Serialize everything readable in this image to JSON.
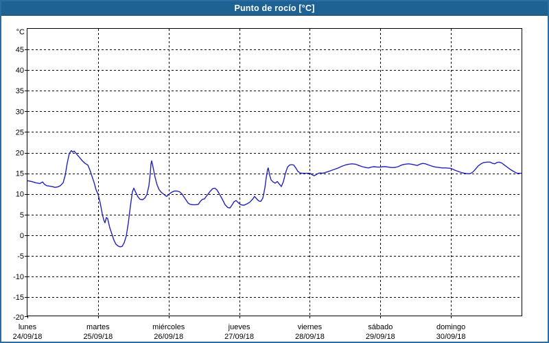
{
  "window": {
    "title": "Punto de rocío [°C]"
  },
  "colors": {
    "titlebar_bg": "#1e6293",
    "titlebar_text": "#ffffff",
    "window_border": "#2b6ca3",
    "plot_bg": "#ffffff",
    "grid": "#000000",
    "axis_text": "#000000",
    "line": "#2121bd"
  },
  "chart_data": {
    "type": "line",
    "title": "Punto de rocío [°C]",
    "ylabel": "°C",
    "xlabel": "",
    "ylim": [
      -20,
      50
    ],
    "y_ticks": [
      45,
      40,
      35,
      30,
      25,
      20,
      15,
      10,
      5,
      0,
      -5,
      -10,
      -15,
      -20
    ],
    "grid": "dashed",
    "legend_position": "none",
    "x_days": [
      {
        "name": "lunes",
        "date": "24/09/18"
      },
      {
        "name": "martes",
        "date": "25/09/18"
      },
      {
        "name": "miércoles",
        "date": "26/09/18"
      },
      {
        "name": "jueves",
        "date": "27/09/18"
      },
      {
        "name": "viernes",
        "date": "28/09/18"
      },
      {
        "name": "sábado",
        "date": "29/09/18"
      },
      {
        "name": "domingo",
        "date": "30/09/18"
      }
    ],
    "xlim_days": [
      0,
      7
    ],
    "series": [
      {
        "name": "Punto de rocío",
        "color": "#2121bd",
        "points": [
          [
            0.0,
            13.2
          ],
          [
            0.058,
            13.0
          ],
          [
            0.117,
            12.7
          ],
          [
            0.175,
            12.5
          ],
          [
            0.214,
            12.9
          ],
          [
            0.243,
            12.3
          ],
          [
            0.272,
            12.0
          ],
          [
            0.311,
            11.9
          ],
          [
            0.35,
            11.8
          ],
          [
            0.389,
            11.6
          ],
          [
            0.428,
            11.7
          ],
          [
            0.467,
            12.0
          ],
          [
            0.506,
            12.7
          ],
          [
            0.535,
            14.5
          ],
          [
            0.564,
            17.5
          ],
          [
            0.593,
            19.8
          ],
          [
            0.622,
            20.5
          ],
          [
            0.642,
            20.1
          ],
          [
            0.661,
            20.4
          ],
          [
            0.7,
            19.6
          ],
          [
            0.739,
            18.8
          ],
          [
            0.778,
            18.0
          ],
          [
            0.817,
            17.4
          ],
          [
            0.856,
            17.0
          ],
          [
            0.885,
            15.8
          ],
          [
            0.914,
            14.3
          ],
          [
            0.943,
            12.8
          ],
          [
            0.972,
            11.0
          ],
          [
            1.001,
            9.9
          ],
          [
            1.031,
            7.8
          ],
          [
            1.06,
            5.2
          ],
          [
            1.079,
            3.8
          ],
          [
            1.099,
            3.0
          ],
          [
            1.118,
            4.3
          ],
          [
            1.137,
            4.0
          ],
          [
            1.167,
            1.8
          ],
          [
            1.196,
            0.3
          ],
          [
            1.225,
            -1.2
          ],
          [
            1.254,
            -2.2
          ],
          [
            1.283,
            -2.6
          ],
          [
            1.312,
            -2.8
          ],
          [
            1.342,
            -2.7
          ],
          [
            1.371,
            -1.8
          ],
          [
            1.4,
            -0.2
          ],
          [
            1.429,
            3.0
          ],
          [
            1.458,
            7.0
          ],
          [
            1.487,
            10.5
          ],
          [
            1.507,
            11.4
          ],
          [
            1.536,
            10.3
          ],
          [
            1.565,
            9.3
          ],
          [
            1.594,
            8.7
          ],
          [
            1.633,
            8.6
          ],
          [
            1.662,
            9.0
          ],
          [
            1.692,
            9.8
          ],
          [
            1.721,
            12.0
          ],
          [
            1.74,
            15.0
          ],
          [
            1.75,
            17.3
          ],
          [
            1.76,
            18.0
          ],
          [
            1.779,
            16.5
          ],
          [
            1.808,
            14.0
          ],
          [
            1.837,
            12.2
          ],
          [
            1.867,
            11.0
          ],
          [
            1.896,
            10.4
          ],
          [
            1.925,
            10.0
          ],
          [
            1.954,
            9.6
          ],
          [
            1.974,
            9.4
          ],
          [
            2.003,
            9.9
          ],
          [
            2.042,
            10.4
          ],
          [
            2.081,
            10.7
          ],
          [
            2.12,
            10.7
          ],
          [
            2.158,
            10.5
          ],
          [
            2.197,
            9.8
          ],
          [
            2.236,
            8.8
          ],
          [
            2.275,
            7.8
          ],
          [
            2.304,
            7.5
          ],
          [
            2.343,
            7.4
          ],
          [
            2.382,
            7.4
          ],
          [
            2.421,
            7.5
          ],
          [
            2.45,
            8.2
          ],
          [
            2.479,
            8.7
          ],
          [
            2.508,
            8.8
          ],
          [
            2.528,
            9.3
          ],
          [
            2.557,
            9.9
          ],
          [
            2.586,
            10.6
          ],
          [
            2.625,
            11.3
          ],
          [
            2.654,
            11.4
          ],
          [
            2.683,
            11.0
          ],
          [
            2.722,
            9.9
          ],
          [
            2.761,
            8.7
          ],
          [
            2.8,
            7.4
          ],
          [
            2.839,
            6.7
          ],
          [
            2.868,
            6.6
          ],
          [
            2.897,
            7.3
          ],
          [
            2.926,
            8.1
          ],
          [
            2.956,
            8.4
          ],
          [
            2.985,
            7.9
          ],
          [
            3.014,
            7.5
          ],
          [
            3.043,
            7.3
          ],
          [
            3.072,
            7.3
          ],
          [
            3.111,
            7.6
          ],
          [
            3.15,
            8.0
          ],
          [
            3.189,
            8.7
          ],
          [
            3.218,
            9.4
          ],
          [
            3.247,
            8.8
          ],
          [
            3.276,
            8.3
          ],
          [
            3.306,
            8.2
          ],
          [
            3.335,
            9.0
          ],
          [
            3.364,
            11.5
          ],
          [
            3.383,
            14.0
          ],
          [
            3.403,
            16.0
          ],
          [
            3.412,
            16.3
          ],
          [
            3.432,
            14.5
          ],
          [
            3.451,
            13.4
          ],
          [
            3.48,
            12.9
          ],
          [
            3.51,
            12.6
          ],
          [
            3.539,
            13.0
          ],
          [
            3.568,
            12.4
          ],
          [
            3.597,
            11.8
          ],
          [
            3.626,
            13.0
          ],
          [
            3.655,
            15.0
          ],
          [
            3.685,
            16.5
          ],
          [
            3.714,
            17.0
          ],
          [
            3.743,
            17.1
          ],
          [
            3.772,
            17.0
          ],
          [
            3.801,
            16.3
          ],
          [
            3.83,
            15.5
          ],
          [
            3.86,
            15.1
          ],
          [
            3.889,
            15.0
          ],
          [
            3.947,
            15.0
          ],
          [
            4.006,
            15.0
          ],
          [
            4.035,
            14.6
          ],
          [
            4.064,
            14.4
          ],
          [
            4.093,
            14.7
          ],
          [
            4.122,
            15.0
          ],
          [
            4.152,
            15.1
          ],
          [
            4.181,
            15.0
          ],
          [
            4.22,
            15.2
          ],
          [
            4.259,
            15.4
          ],
          [
            4.307,
            15.7
          ],
          [
            4.356,
            16.0
          ],
          [
            4.404,
            16.3
          ],
          [
            4.453,
            16.7
          ],
          [
            4.502,
            17.0
          ],
          [
            4.55,
            17.2
          ],
          [
            4.599,
            17.3
          ],
          [
            4.648,
            17.2
          ],
          [
            4.696,
            16.9
          ],
          [
            4.745,
            16.6
          ],
          [
            4.793,
            16.4
          ],
          [
            4.832,
            16.3
          ],
          [
            4.871,
            16.5
          ],
          [
            4.91,
            16.6
          ],
          [
            4.958,
            16.5
          ],
          [
            4.997,
            16.5
          ],
          [
            5.036,
            16.6
          ],
          [
            5.075,
            16.6
          ],
          [
            5.114,
            16.5
          ],
          [
            5.153,
            16.4
          ],
          [
            5.201,
            16.4
          ],
          [
            5.25,
            16.6
          ],
          [
            5.299,
            17.0
          ],
          [
            5.347,
            17.2
          ],
          [
            5.396,
            17.3
          ],
          [
            5.444,
            17.2
          ],
          [
            5.493,
            17.0
          ],
          [
            5.522,
            16.9
          ],
          [
            5.561,
            17.2
          ],
          [
            5.6,
            17.4
          ],
          [
            5.639,
            17.3
          ],
          [
            5.687,
            17.0
          ],
          [
            5.736,
            16.7
          ],
          [
            5.785,
            16.5
          ],
          [
            5.833,
            16.4
          ],
          [
            5.882,
            16.3
          ],
          [
            5.93,
            16.3
          ],
          [
            5.998,
            16.2
          ],
          [
            6.047,
            15.8
          ],
          [
            6.096,
            15.5
          ],
          [
            6.144,
            15.2
          ],
          [
            6.193,
            15.0
          ],
          [
            6.232,
            14.9
          ],
          [
            6.271,
            14.9
          ],
          [
            6.31,
            15.3
          ],
          [
            6.348,
            16.0
          ],
          [
            6.387,
            16.8
          ],
          [
            6.426,
            17.3
          ],
          [
            6.465,
            17.6
          ],
          [
            6.514,
            17.7
          ],
          [
            6.553,
            17.7
          ],
          [
            6.592,
            17.4
          ],
          [
            6.621,
            17.3
          ],
          [
            6.65,
            17.6
          ],
          [
            6.679,
            17.7
          ],
          [
            6.718,
            17.5
          ],
          [
            6.757,
            17.0
          ],
          [
            6.796,
            16.5
          ],
          [
            6.835,
            16.0
          ],
          [
            6.873,
            15.6
          ],
          [
            6.912,
            15.2
          ],
          [
            6.941,
            15.0
          ],
          [
            6.97,
            15.0
          ],
          [
            7.0,
            15.0
          ]
        ]
      }
    ]
  }
}
